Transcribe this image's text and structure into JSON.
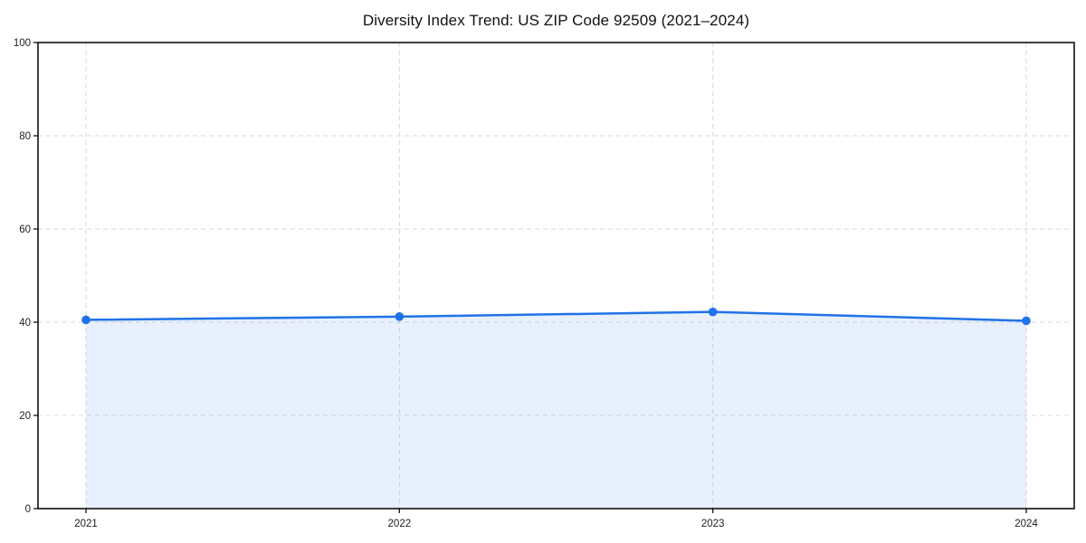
{
  "chart": {
    "title": "Diversity Index Trend: US ZIP Code 92509 (2021–2024)"
  },
  "chart_data": {
    "type": "area",
    "title": "Diversity Index Trend: US ZIP Code 92509 (2021–2024)",
    "x": [
      2021,
      2022,
      2023,
      2024
    ],
    "xtick_labels": [
      "2021",
      "2022",
      "2023",
      "2024"
    ],
    "series": [
      {
        "name": "Diversity Index",
        "values": [
          40.5,
          41.2,
          42.2,
          40.3
        ]
      }
    ],
    "xlabel": "",
    "ylabel": "",
    "ylim": [
      0,
      100
    ],
    "yticks": [
      0,
      20,
      40,
      60,
      80,
      100
    ],
    "grid": true,
    "legend": false,
    "colors": {
      "line": "#2072e8",
      "marker": "#2072e8",
      "fill": "#2072e8",
      "fill_opacity": 0.11,
      "grid": "#d9d9d9",
      "spine": "#111111",
      "tick": "#111111",
      "background": "#ffffff"
    }
  }
}
